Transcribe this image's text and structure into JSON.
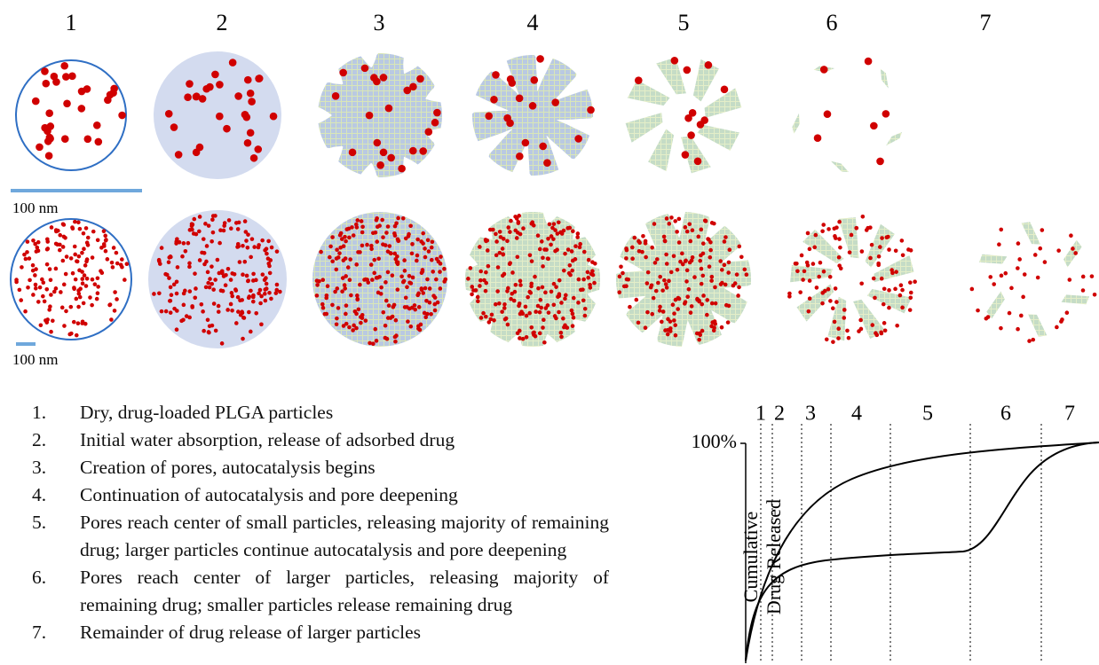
{
  "stage_numbers": [
    "1",
    "2",
    "3",
    "4",
    "5",
    "6",
    "7"
  ],
  "scale_bars": [
    "100 nm",
    "100 nm"
  ],
  "steps": [
    {
      "number": "1.",
      "text": "Dry, drug-loaded PLGA particles"
    },
    {
      "number": "2.",
      "text": "Initial water absorption, release of adsorbed drug"
    },
    {
      "number": "3.",
      "text": "Creation of pores, autocatalysis begins"
    },
    {
      "number": "4.",
      "text": "Continuation of autocatalysis and pore deepening"
    },
    {
      "number": "5.",
      "text": "Pores reach center of small particles, releasing majority of remaining drug; larger particles continue autocatalysis and pore deepening"
    },
    {
      "number": "6.",
      "text": "Pores reach center of larger particles, releasing majority of remaining drug; smaller particles release remaining drug"
    },
    {
      "number": "7.",
      "text": "Remainder of drug release of larger particles"
    }
  ],
  "release_plot": {
    "stage_labels": [
      "1",
      "2",
      "3",
      "4",
      "5",
      "6",
      "7"
    ],
    "top_label": "100%",
    "y_label_lines": [
      "Cumulative",
      "Drug Released"
    ]
  }
}
